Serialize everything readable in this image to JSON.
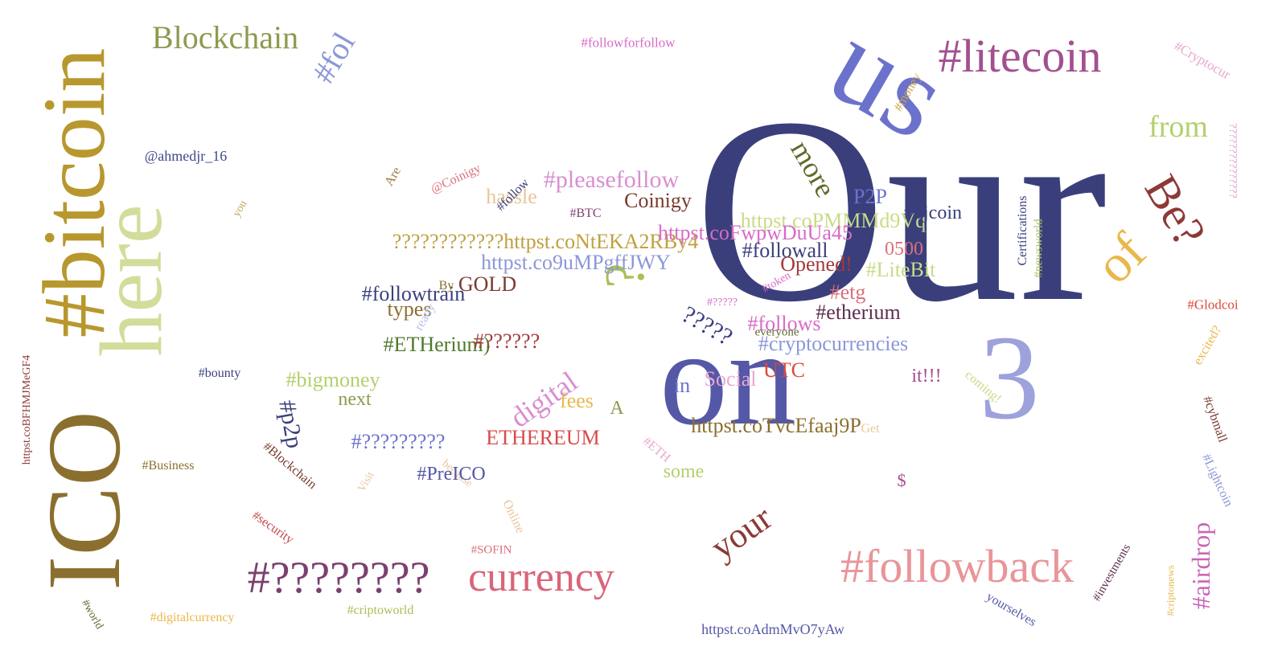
{
  "words": [
    {
      "t": "Our",
      "c": "#3a3f7c"
    },
    {
      "t": "on",
      "c": "#5458a6"
    },
    {
      "t": "us",
      "c": "#6b72cc"
    },
    {
      "t": "3",
      "c": "#9da2dc"
    },
    {
      "t": "#bitcoin",
      "c": "#b8982e"
    },
    {
      "t": "ICO",
      "c": "#8b6f2e"
    },
    {
      "t": "here",
      "c": "#d3dc9a"
    },
    {
      "t": "#litecoin",
      "c": "#a3508f"
    },
    {
      "t": "Blockchain",
      "c": "#8c9b4e"
    },
    {
      "t": "#fol",
      "c": "#8b97d8"
    },
    {
      "t": "#followforfollow",
      "c": "#d86bc6"
    },
    {
      "t": "#Cryptocur",
      "c": "#e9a7cf"
    },
    {
      "t": "from",
      "c": "#b3d06c"
    },
    {
      "t": "Be?",
      "c": "#8b3a36"
    },
    {
      "t": "of",
      "c": "#e9b84b"
    },
    {
      "t": "more",
      "c": "#5d6b2a"
    },
    {
      "t": "?",
      "c": "#a9c057"
    },
    {
      "t": "???????????????",
      "c": "#d89cd2"
    },
    {
      "t": "#money",
      "c": "#c8a44a"
    },
    {
      "t": "@ahmedjr_16",
      "c": "#3f4a8a"
    },
    {
      "t": "#pleasefollow",
      "c": "#d98fd0"
    },
    {
      "t": "Coinigy",
      "c": "#7a3a2d"
    },
    {
      "t": "@Coinigy",
      "c": "#d9707c"
    },
    {
      "t": "hassle",
      "c": "#e8c69b"
    },
    {
      "t": "#follow",
      "c": "#3a3f7c"
    },
    {
      "t": "#BTC",
      "c": "#7d3f6e"
    },
    {
      "t": "Are",
      "c": "#9c7b3a"
    },
    {
      "t": "you",
      "c": "#c0a850"
    },
    {
      "t": "P2P",
      "c": "#6b72cc"
    },
    {
      "t": "httpst.coPMMMd9Vq",
      "c": "#c8dc86"
    },
    {
      "t": "#djcoin",
      "c": "#3a3f7c"
    },
    {
      "t": "????????????httpst.coNtEKA2RBy4",
      "c": "#c0a040"
    },
    {
      "t": "httpst.coFwpwDuUa45",
      "c": "#d86bc6"
    },
    {
      "t": "#followall",
      "c": "#3a3f7c"
    },
    {
      "t": "0500",
      "c": "#d9707c"
    },
    {
      "t": "Opened!",
      "c": "#a33a3a"
    },
    {
      "t": "httpst.co9uMPgffJWY",
      "c": "#8b97d8"
    },
    {
      "t": "#LiteBit",
      "c": "#c8dc86"
    },
    {
      "t": "Certifications",
      "c": "#3a3f7c"
    },
    {
      "t": "#newsworld",
      "c": "#a9c057"
    },
    {
      "t": "GOLD",
      "c": "#7a3a2d"
    },
    {
      "t": "#followtrain",
      "c": "#3a3f7c"
    },
    {
      "t": "types",
      "c": "#8b6f2e"
    },
    {
      "t": "#token",
      "c": "#d86bc6"
    },
    {
      "t": "#etg",
      "c": "#d9707c"
    },
    {
      "t": "#?????",
      "c": "#d86bc6"
    },
    {
      "t": "#follows",
      "c": "#d86bc6"
    },
    {
      "t": "#etherium",
      "c": "#5d2f4f"
    },
    {
      "t": "?????",
      "c": "#3a3f7c"
    },
    {
      "t": "everyone",
      "c": "#5d6b2a"
    },
    {
      "t": "#cryptocurrencies",
      "c": "#8b97d8"
    },
    {
      "t": "#Glodcoi",
      "c": "#d94a3a"
    },
    {
      "t": "excited?",
      "c": "#e9b84b"
    },
    {
      "t": "httpst.coBFHMJMeGF4",
      "c": "#8b3a36"
    },
    {
      "t": "#ETHerium)",
      "c": "#4f7a2d"
    },
    {
      "t": "#??????",
      "c": "#a33a3a"
    },
    {
      "t": "ready",
      "c": "#b9c0ea"
    },
    {
      "t": "By",
      "c": "#8b6f2e"
    },
    {
      "t": "UTC",
      "c": "#d94a3a"
    },
    {
      "t": "Social",
      "c": "#e9a7cf"
    },
    {
      "t": "in",
      "c": "#6b72cc"
    },
    {
      "t": "it!!!",
      "c": "#a3508f"
    },
    {
      "t": "coming!",
      "c": "#c8dc86"
    },
    {
      "t": "#bounty",
      "c": "#3a3f7c"
    },
    {
      "t": "#bigmoney",
      "c": "#b3d06c"
    },
    {
      "t": "next",
      "c": "#8c9b4e"
    },
    {
      "t": "#p2p",
      "c": "#3a3f7c"
    },
    {
      "t": "digital",
      "c": "#d98fd0"
    },
    {
      "t": "fees",
      "c": "#e9b84b"
    },
    {
      "t": "A",
      "c": "#8c9b4e"
    },
    {
      "t": "httpst.coTvcEfaaj9P",
      "c": "#8b6f2e"
    },
    {
      "t": "Get",
      "c": "#e8c69b"
    },
    {
      "t": "#cybmall",
      "c": "#7a3a2d"
    },
    {
      "t": "#Lightcoin",
      "c": "#8b97d8"
    },
    {
      "t": "#?????????",
      "c": "#6b72cc"
    },
    {
      "t": "ETHEREUM",
      "c": "#d94a4a"
    },
    {
      "t": "#ETH",
      "c": "#e9a7cf"
    },
    {
      "t": "some",
      "c": "#b3d06c"
    },
    {
      "t": "#Business",
      "c": "#8b6f2e"
    },
    {
      "t": "#Blockchain",
      "c": "#7a3a2d"
    },
    {
      "t": "because",
      "c": "#e8c69b"
    },
    {
      "t": "Visit",
      "c": "#e8c69b"
    },
    {
      "t": "#PreICO",
      "c": "#5458a6"
    },
    {
      "t": "$",
      "c": "#a3508f"
    },
    {
      "t": "Online",
      "c": "#e8c69b"
    },
    {
      "t": "#security",
      "c": "#c24a4a"
    },
    {
      "t": "#SOFIN",
      "c": "#d9707c"
    },
    {
      "t": "your",
      "c": "#8b3a36"
    },
    {
      "t": "#followback",
      "c": "#e8959a"
    },
    {
      "t": "#airdrop",
      "c": "#c966b8"
    },
    {
      "t": "#investments",
      "c": "#5d2f4f"
    },
    {
      "t": "#criptonews",
      "c": "#e9b84b"
    },
    {
      "t": "#????????",
      "c": "#7d3f6e"
    },
    {
      "t": "currency",
      "c": "#d9657a"
    },
    {
      "t": "yourselves",
      "c": "#5458a6"
    },
    {
      "t": "#world",
      "c": "#5d6b2a"
    },
    {
      "t": "#digitalcurrency",
      "c": "#e9b84b"
    },
    {
      "t": "#criptoworld",
      "c": "#a9c057"
    },
    {
      "t": "httpst.coAdmMvO7yAw",
      "c": "#5458a6"
    }
  ]
}
